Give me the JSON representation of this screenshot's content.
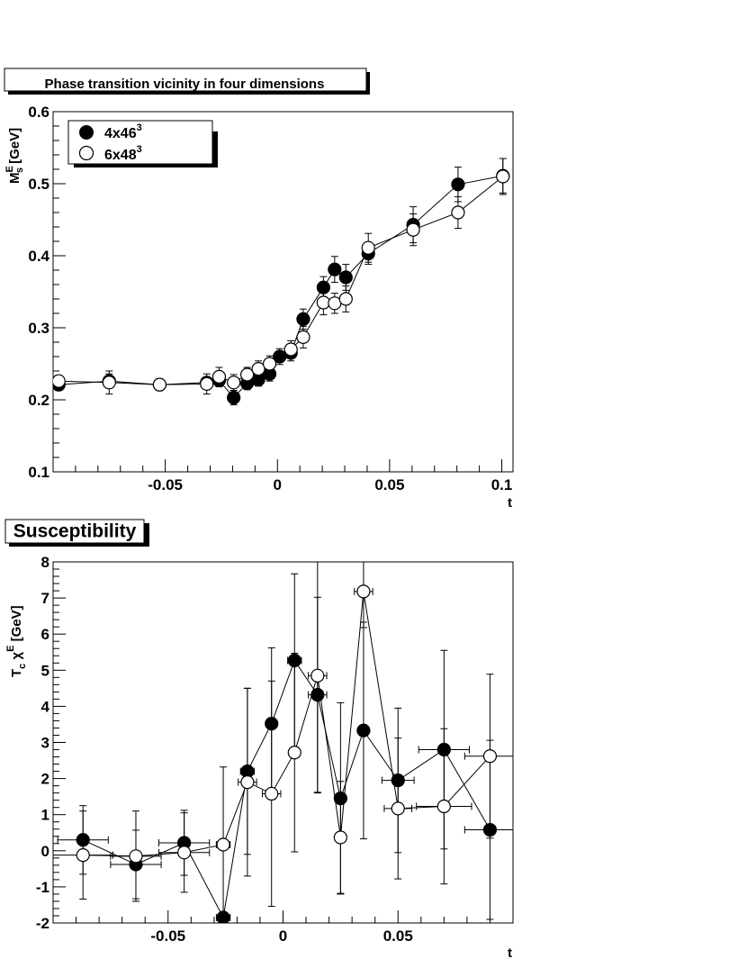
{
  "chart_data": [
    {
      "type": "scatter",
      "title": "Phase transition vicinity in four dimensions",
      "xlabel": "t",
      "ylabel": "M_s^E [GeV]",
      "xlim": [
        -0.1,
        0.105
      ],
      "ylim": [
        0.1,
        0.6
      ],
      "xticks": [
        -0.05,
        0,
        0.05,
        0.1
      ],
      "xtick_labels": [
        "-0.05",
        "0",
        "0.05",
        "0.1"
      ],
      "yticks": [
        0.1,
        0.2,
        0.3,
        0.4,
        0.5,
        0.6
      ],
      "ytick_labels": [
        "0.1",
        "0.2",
        "0.3",
        "0.4",
        "0.5",
        "0.6"
      ],
      "legend": "top-left",
      "series": [
        {
          "name": "4x46",
          "name_sup": "3",
          "marker": "filled",
          "points": [
            {
              "x": -0.0975,
              "y": 0.221,
              "e": 0.008
            },
            {
              "x": -0.075,
              "y": 0.226,
              "e": 0.01
            },
            {
              "x": -0.0525,
              "y": 0.221,
              "e": 0.008
            },
            {
              "x": -0.0315,
              "y": 0.224,
              "e": 0.007
            },
            {
              "x": -0.026,
              "y": 0.227,
              "e": 0.009
            },
            {
              "x": -0.0195,
              "y": 0.203,
              "e": 0.01
            },
            {
              "x": -0.0135,
              "y": 0.223,
              "e": 0.009
            },
            {
              "x": -0.0085,
              "y": 0.228,
              "e": 0.009
            },
            {
              "x": -0.0035,
              "y": 0.236,
              "e": 0.01
            },
            {
              "x": 0.001,
              "y": 0.26,
              "e": 0.011
            },
            {
              "x": 0.006,
              "y": 0.265,
              "e": 0.011
            },
            {
              "x": 0.0115,
              "y": 0.312,
              "e": 0.014
            },
            {
              "x": 0.0205,
              "y": 0.356,
              "e": 0.015
            },
            {
              "x": 0.0255,
              "y": 0.381,
              "e": 0.018
            },
            {
              "x": 0.0305,
              "y": 0.37,
              "e": 0.018
            },
            {
              "x": 0.0405,
              "y": 0.403,
              "e": 0.015
            },
            {
              "x": 0.0605,
              "y": 0.443,
              "e": 0.025
            },
            {
              "x": 0.0805,
              "y": 0.499,
              "e": 0.024
            },
            {
              "x": 0.1005,
              "y": 0.511,
              "e": 0.024
            }
          ]
        },
        {
          "name": "6x48",
          "name_sup": "3",
          "marker": "open",
          "points": [
            {
              "x": -0.0975,
              "y": 0.226,
              "e": 0.008
            },
            {
              "x": -0.075,
              "y": 0.224,
              "e": 0.016
            },
            {
              "x": -0.0525,
              "y": 0.221,
              "e": 0.008
            },
            {
              "x": -0.0315,
              "y": 0.222,
              "e": 0.014
            },
            {
              "x": -0.026,
              "y": 0.232,
              "e": 0.013
            },
            {
              "x": -0.0195,
              "y": 0.224,
              "e": 0.011
            },
            {
              "x": -0.0135,
              "y": 0.235,
              "e": 0.01
            },
            {
              "x": -0.0085,
              "y": 0.243,
              "e": 0.011
            },
            {
              "x": -0.0035,
              "y": 0.25,
              "e": 0.011
            },
            {
              "x": 0.006,
              "y": 0.27,
              "e": 0.012
            },
            {
              "x": 0.0115,
              "y": 0.287,
              "e": 0.015
            },
            {
              "x": 0.0205,
              "y": 0.335,
              "e": 0.017
            },
            {
              "x": 0.0255,
              "y": 0.334,
              "e": 0.014
            },
            {
              "x": 0.0305,
              "y": 0.34,
              "e": 0.018
            },
            {
              "x": 0.0405,
              "y": 0.411,
              "e": 0.02
            },
            {
              "x": 0.0605,
              "y": 0.436,
              "e": 0.022
            },
            {
              "x": 0.0805,
              "y": 0.46,
              "e": 0.022
            },
            {
              "x": 0.1005,
              "y": 0.51,
              "e": 0.025
            }
          ]
        }
      ]
    },
    {
      "type": "scatter",
      "title": "Susceptibility",
      "xlabel": "t",
      "ylabel": "T_c χ^E [GeV]",
      "xlim": [
        -0.1,
        0.1
      ],
      "ylim": [
        -2,
        8
      ],
      "xticks": [
        -0.05,
        0,
        0.05
      ],
      "xtick_labels": [
        "-0.05",
        "0",
        "0.05"
      ],
      "yticks": [
        -2,
        -1,
        0,
        1,
        2,
        3,
        4,
        5,
        6,
        7,
        8
      ],
      "ytick_labels": [
        "-2",
        "-1",
        "0",
        "1",
        "2",
        "3",
        "4",
        "5",
        "6",
        "7",
        "8"
      ],
      "series": [
        {
          "name": "4x46",
          "marker": "filled",
          "points": [
            {
              "x": -0.087,
              "y": 0.3,
              "xe": 0.011,
              "ye": 0.95
            },
            {
              "x": -0.064,
              "y": -0.38,
              "xe": 0.011,
              "ye": 0.95
            },
            {
              "x": -0.043,
              "y": 0.22,
              "xe": 0.011,
              "ye": 0.9
            },
            {
              "x": -0.026,
              "y": -1.85,
              "xe": 0.003,
              "ye": 0.1
            },
            {
              "x": -0.0155,
              "y": 2.2,
              "xe": 0.003,
              "ye": 2.3
            },
            {
              "x": -0.005,
              "y": 3.52,
              "xe": 0.002,
              "ye": 2.1
            },
            {
              "x": 0.005,
              "y": 5.27,
              "xe": 0.003,
              "ye": 2.4
            },
            {
              "x": 0.015,
              "y": 4.32,
              "xe": 0.004,
              "ye": 2.7
            },
            {
              "x": 0.025,
              "y": 1.45,
              "xe": 0.002,
              "ye": 2.65
            },
            {
              "x": 0.035,
              "y": 3.33,
              "xe": 0.002,
              "ye": 3.0
            },
            {
              "x": 0.05,
              "y": 1.95,
              "xe": 0.007,
              "ye": 2.0
            },
            {
              "x": 0.07,
              "y": 2.8,
              "xe": 0.011,
              "ye": 2.75
            },
            {
              "x": 0.09,
              "y": 0.58,
              "xe": 0.011,
              "ye": 2.48
            }
          ]
        },
        {
          "name": "6x48",
          "marker": "open",
          "points": [
            {
              "x": -0.087,
              "y": -0.12,
              "xe": 0.013,
              "ye": 1.22
            },
            {
              "x": -0.064,
              "y": -0.15,
              "xe": 0.011,
              "ye": 1.25
            },
            {
              "x": -0.043,
              "y": -0.05,
              "xe": 0.011,
              "ye": 1.1
            },
            {
              "x": -0.026,
              "y": 0.17,
              "xe": 0.003,
              "ye": 2.15
            },
            {
              "x": -0.0155,
              "y": 1.9,
              "xe": 0.004,
              "ye": 2.6
            },
            {
              "x": -0.005,
              "y": 1.58,
              "xe": 0.004,
              "ye": 3.12
            },
            {
              "x": 0.005,
              "y": 2.72,
              "xe": 0.002,
              "ye": 2.75
            },
            {
              "x": 0.015,
              "y": 4.85,
              "xe": 0.004,
              "ye": 3.25
            },
            {
              "x": 0.025,
              "y": 0.37,
              "xe": 0.002,
              "ye": 1.55
            },
            {
              "x": 0.035,
              "y": 7.18,
              "xe": 0.004,
              "ye": 1.0
            },
            {
              "x": 0.05,
              "y": 1.17,
              "xe": 0.006,
              "ye": 1.95
            },
            {
              "x": 0.07,
              "y": 1.23,
              "xe": 0.012,
              "ye": 2.15
            },
            {
              "x": 0.09,
              "y": 2.62,
              "xe": 0.011,
              "ye": 2.27
            }
          ]
        }
      ]
    }
  ]
}
